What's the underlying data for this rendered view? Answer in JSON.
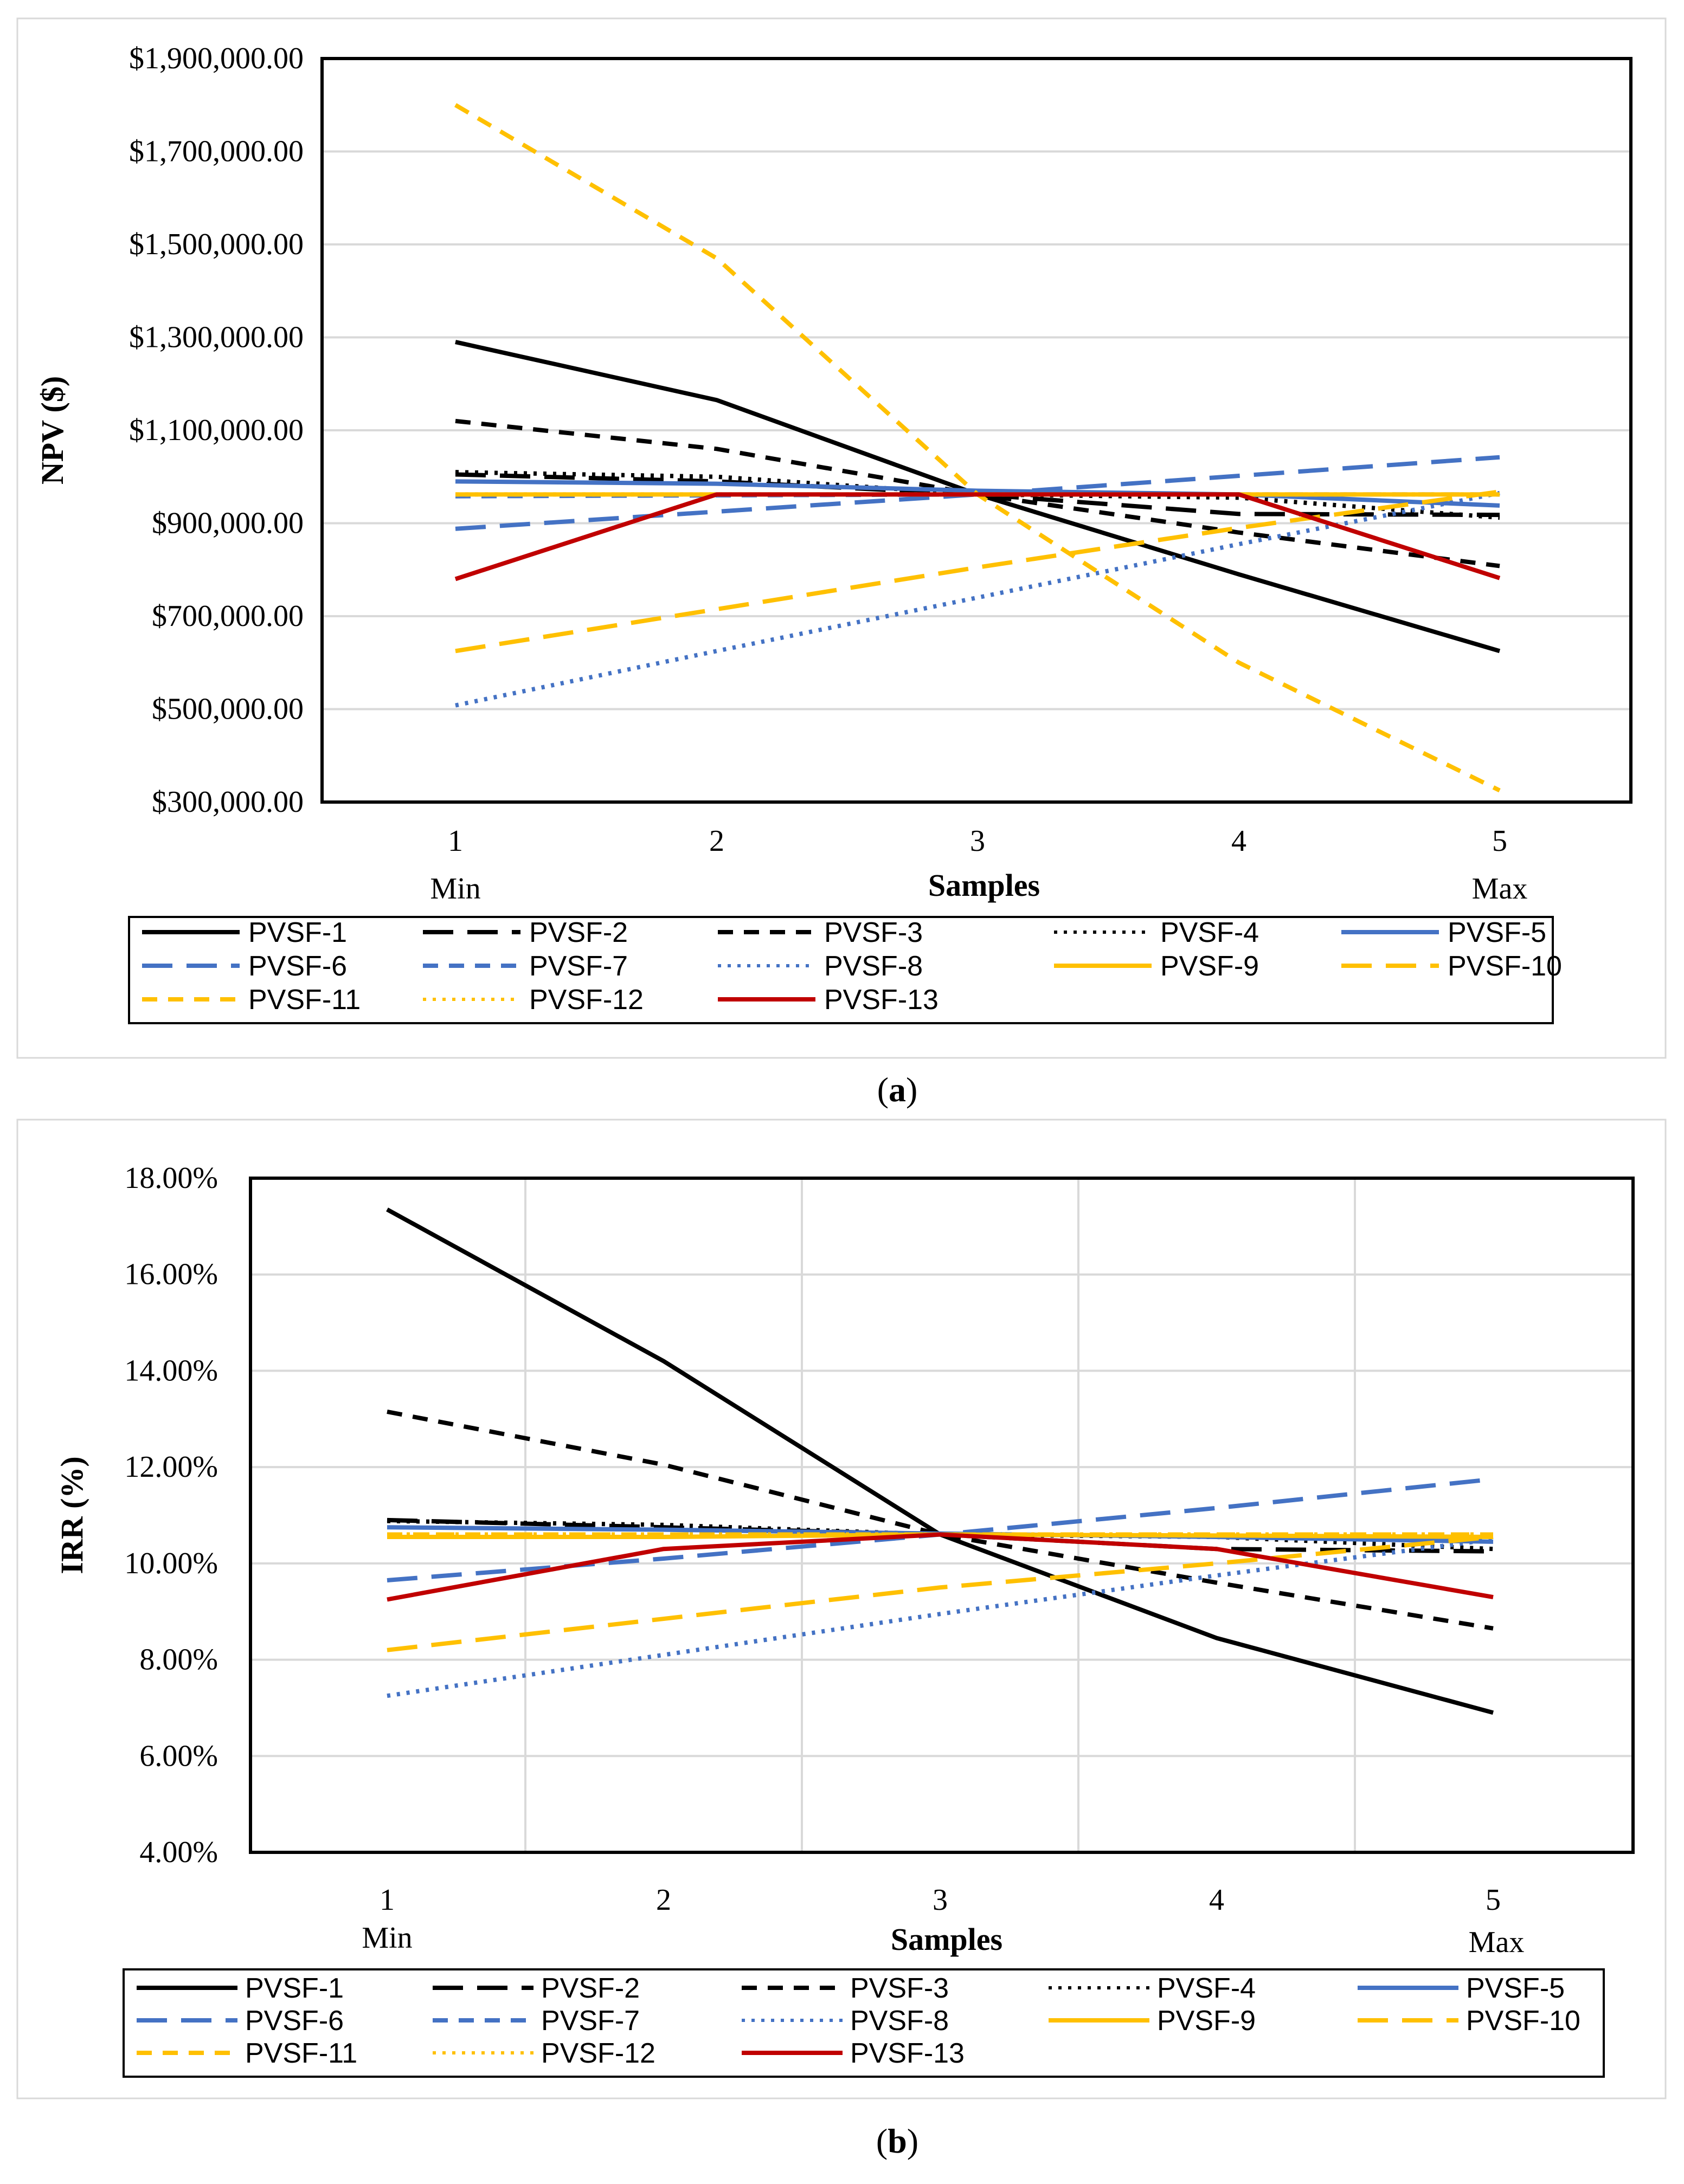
{
  "charts": [
    {
      "caption": "(a)",
      "caption_letter": "a",
      "chart_data": {
        "type": "line",
        "title": "",
        "xlabel": "Samples",
        "ylabel": "NPV ($)",
        "x": [
          1,
          2,
          3,
          4,
          5
        ],
        "x_tick_labels": [
          "1",
          "2",
          "3",
          "4",
          "5"
        ],
        "x_end_labels": [
          "Min",
          "Max"
        ],
        "ylim": [
          300000,
          1900000
        ],
        "y_ticks": [
          300000,
          500000,
          700000,
          900000,
          1100000,
          1300000,
          1500000,
          1700000,
          1900000
        ],
        "y_tick_labels": [
          "$300,000.00",
          "$500,000.00",
          "$700,000.00",
          "$900,000.00",
          "$1,100,000.00",
          "$1,300,000.00",
          "$1,500,000.00",
          "$1,700,000.00",
          "$1,900,000.00"
        ],
        "grid": "horizontal",
        "legend_position": "bottom",
        "series": [
          {
            "name": "PVSF-1",
            "values": [
              1290000,
              1165000,
              962000,
              790000,
              625000
            ]
          },
          {
            "name": "PVSF-2",
            "values": [
              1005000,
              990000,
              962000,
              920000,
              918000
            ]
          },
          {
            "name": "PVSF-3",
            "values": [
              1120000,
              1060000,
              962000,
              880000,
              808000
            ]
          },
          {
            "name": "PVSF-4",
            "values": [
              1010000,
              1000000,
              962000,
              955000,
              912000
            ]
          },
          {
            "name": "PVSF-5",
            "values": [
              990000,
              985000,
              970000,
              962000,
              938000
            ]
          },
          {
            "name": "PVSF-6",
            "values": [
              888000,
              925000,
              962000,
              1002000,
              1042000
            ]
          },
          {
            "name": "PVSF-7",
            "values": [
              958000,
              960000,
              962000,
              962000,
              962000
            ]
          },
          {
            "name": "PVSF-8",
            "values": [
              508000,
              625000,
              740000,
              855000,
              965000
            ]
          },
          {
            "name": "PVSF-9",
            "values": [
              962000,
              962000,
              962000,
              962000,
              962000
            ]
          },
          {
            "name": "PVSF-10",
            "values": [
              625000,
              715000,
              805000,
              890000,
              968000
            ]
          },
          {
            "name": "PVSF-11",
            "values": [
              1800000,
              1470000,
              962000,
              600000,
              325000
            ]
          },
          {
            "name": "PVSF-12",
            "values": [
              962000,
              962000,
              962000,
              962000,
              962000
            ]
          },
          {
            "name": "PVSF-13",
            "values": [
              780000,
              962000,
              962000,
              962000,
              782000
            ]
          }
        ]
      }
    },
    {
      "caption": "(b)",
      "caption_letter": "b",
      "chart_data": {
        "type": "line",
        "title": "",
        "xlabel": "Samples",
        "ylabel": "IRR (%)",
        "x": [
          1,
          2,
          3,
          4,
          5
        ],
        "x_tick_labels": [
          "1",
          "2",
          "3",
          "4",
          "5"
        ],
        "x_end_labels": [
          "Min",
          "Max"
        ],
        "ylim": [
          4,
          18
        ],
        "y_ticks": [
          4,
          6,
          8,
          10,
          12,
          14,
          16,
          18
        ],
        "y_tick_labels": [
          "4.00%",
          "6.00%",
          "8.00%",
          "10.00%",
          "12.00%",
          "14.00%",
          "16.00%",
          "18.00%"
        ],
        "grid": "both",
        "legend_position": "bottom",
        "series": [
          {
            "name": "PVSF-1",
            "values": [
              17.35,
              14.2,
              10.6,
              8.45,
              6.9
            ]
          },
          {
            "name": "PVSF-2",
            "values": [
              10.9,
              10.75,
              10.6,
              10.3,
              10.25
            ]
          },
          {
            "name": "PVSF-3",
            "values": [
              13.15,
              12.05,
              10.6,
              9.6,
              8.65
            ]
          },
          {
            "name": "PVSF-4",
            "values": [
              10.88,
              10.8,
              10.6,
              10.55,
              10.3
            ]
          },
          {
            "name": "PVSF-5",
            "values": [
              10.75,
              10.7,
              10.62,
              10.55,
              10.45
            ]
          },
          {
            "name": "PVSF-6",
            "values": [
              9.65,
              10.1,
              10.6,
              11.15,
              11.75
            ]
          },
          {
            "name": "PVSF-7",
            "values": [
              10.6,
              10.6,
              10.6,
              10.6,
              10.6
            ]
          },
          {
            "name": "PVSF-8",
            "values": [
              7.25,
              8.1,
              8.95,
              9.75,
              10.5
            ]
          },
          {
            "name": "PVSF-9",
            "values": [
              10.55,
              10.55,
              10.6,
              10.58,
              10.55
            ]
          },
          {
            "name": "PVSF-10",
            "values": [
              8.2,
              8.85,
              9.5,
              10.0,
              10.55
            ]
          },
          {
            "name": "PVSF-11",
            "values": [
              10.6,
              10.6,
              10.6,
              10.6,
              10.6
            ]
          },
          {
            "name": "PVSF-12",
            "values": [
              10.6,
              10.6,
              10.6,
              10.6,
              10.6
            ]
          },
          {
            "name": "PVSF-13",
            "values": [
              9.25,
              10.3,
              10.6,
              10.3,
              9.3
            ]
          }
        ]
      }
    }
  ],
  "series_styles": [
    {
      "name": "PVSF-1",
      "color": "#000000",
      "dash": "solid"
    },
    {
      "name": "PVSF-2",
      "color": "#000000",
      "dash": "longdash"
    },
    {
      "name": "PVSF-3",
      "color": "#000000",
      "dash": "dash"
    },
    {
      "name": "PVSF-4",
      "color": "#000000",
      "dash": "dot"
    },
    {
      "name": "PVSF-5",
      "color": "#4472c4",
      "dash": "solid"
    },
    {
      "name": "PVSF-6",
      "color": "#4472c4",
      "dash": "longdash"
    },
    {
      "name": "PVSF-7",
      "color": "#4472c4",
      "dash": "dash"
    },
    {
      "name": "PVSF-8",
      "color": "#4472c4",
      "dash": "dot"
    },
    {
      "name": "PVSF-9",
      "color": "#ffc000",
      "dash": "solid"
    },
    {
      "name": "PVSF-10",
      "color": "#ffc000",
      "dash": "longdash"
    },
    {
      "name": "PVSF-11",
      "color": "#ffc000",
      "dash": "dash"
    },
    {
      "name": "PVSF-12",
      "color": "#ffc000",
      "dash": "dot"
    },
    {
      "name": "PVSF-13",
      "color": "#c00000",
      "dash": "solid"
    }
  ]
}
